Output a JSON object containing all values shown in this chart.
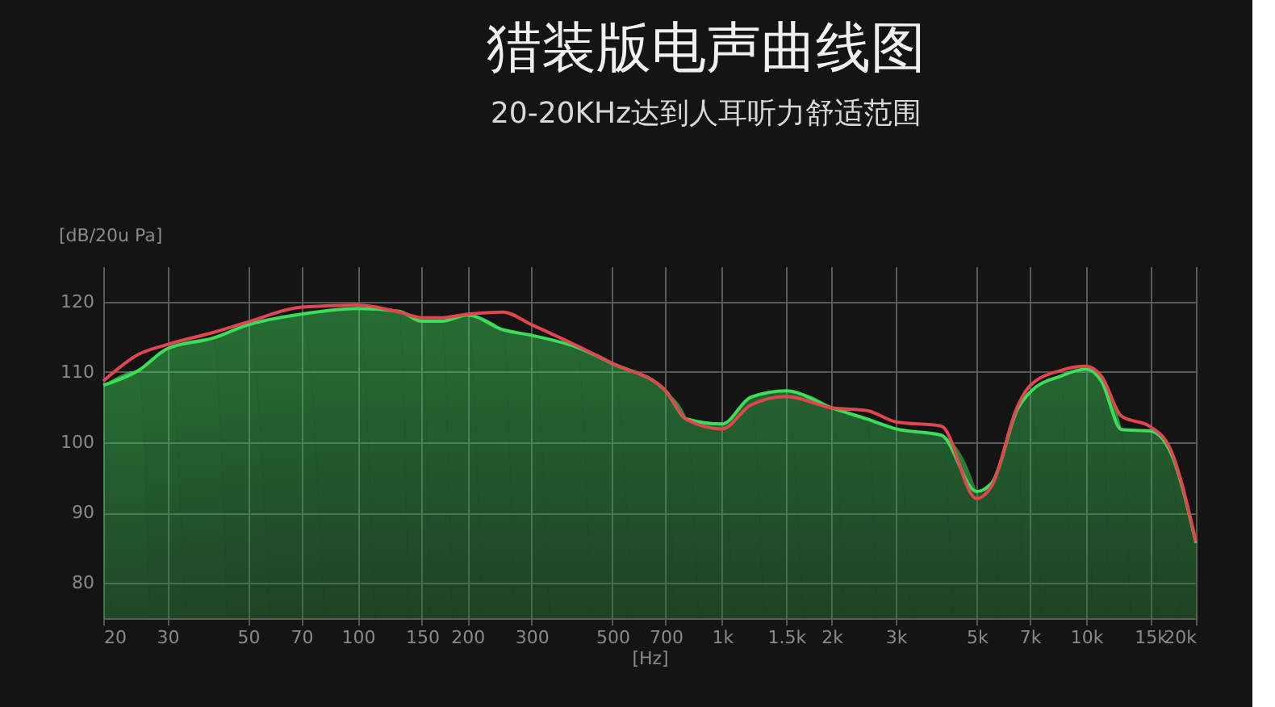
{
  "chart_data": {
    "type": "line",
    "title": "猎装版电声曲线图",
    "subtitle": "20-20KHz达到人耳听力舒适范围",
    "xlabel": "[Hz]",
    "ylabel": "[dB/20u Pa]",
    "log": "x",
    "grid": true,
    "legend": false,
    "line_style": "solid",
    "marker": "none",
    "xlim": [
      20,
      20000
    ],
    "ylim": [
      75,
      125
    ],
    "xticks": [
      20,
      30,
      50,
      70,
      100,
      150,
      200,
      300,
      500,
      700,
      {
        "value": 1000,
        "label": "1k"
      },
      {
        "value": 1500,
        "label": "1.5k"
      },
      {
        "value": 2000,
        "label": "2k"
      },
      {
        "value": 3000,
        "label": "3k"
      },
      {
        "value": 5000,
        "label": "5k"
      },
      {
        "value": 7000,
        "label": "7k"
      },
      {
        "value": 10000,
        "label": "10k"
      },
      {
        "value": 15000,
        "label": "15k"
      },
      {
        "value": 20000,
        "label": "20k"
      }
    ],
    "yticks": [
      80,
      90,
      100,
      110,
      120
    ],
    "x": [
      20,
      25,
      30,
      40,
      50,
      70,
      100,
      130,
      150,
      170,
      200,
      250,
      300,
      400,
      500,
      700,
      800,
      1000,
      1200,
      1500,
      2000,
      2500,
      3000,
      4000,
      5000,
      5500,
      6500,
      7000,
      8500,
      10000,
      11000,
      12500,
      15000,
      17000,
      20000
    ],
    "series": [
      {
        "color": "#e0464f",
        "type": "line",
        "values": [
          108.7,
          112.5,
          113.9,
          115.6,
          117.1,
          119.2,
          119.5,
          118.5,
          117.7,
          117.7,
          118.2,
          118.5,
          116.7,
          113.7,
          111.2,
          107.3,
          103.2,
          101.9,
          105.3,
          106.5,
          104.9,
          104.5,
          102.9,
          102.3,
          92,
          93.8,
          105.3,
          108,
          110.2,
          110.8,
          109.4,
          103.7,
          102.2,
          99.1,
          85.9
        ]
      },
      {
        "color": "#3ddc5a",
        "type": "area",
        "values": [
          108.1,
          110.2,
          113.3,
          114.8,
          116.7,
          118.2,
          119.0,
          118.6,
          117.2,
          117.2,
          118.1,
          116.0,
          115.2,
          113.5,
          111.2,
          107.3,
          103.3,
          102.6,
          106.4,
          107.3,
          104.9,
          103.3,
          101.9,
          101.0,
          93.0,
          94.2,
          104.9,
          107.1,
          109.4,
          110.4,
          108.7,
          101.8,
          101.6,
          98.7,
          85.7
        ]
      }
    ]
  }
}
